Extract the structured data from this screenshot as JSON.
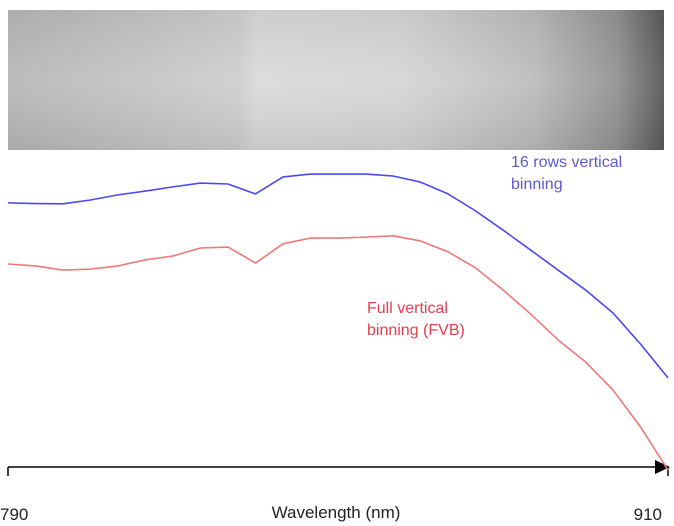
{
  "chart_data": {
    "type": "line",
    "xlabel": "Wavelength (nm)",
    "x": [
      790,
      795,
      800,
      805,
      810,
      815,
      820,
      825,
      830,
      835,
      840,
      845,
      850,
      855,
      860,
      865,
      870,
      875,
      880,
      885,
      890,
      895,
      900,
      905,
      910
    ],
    "xlim": [
      790,
      910
    ],
    "xticks": [
      790,
      910
    ],
    "ylim": [
      0,
      100
    ],
    "series": [
      {
        "name": "16 rows vertical binning",
        "color": "#4a4af0",
        "values": [
          86.6,
          86.4,
          86.3,
          87.5,
          89.1,
          90.3,
          91.6,
          92.8,
          92.5,
          89.4,
          94.7,
          95.6,
          95.6,
          95.6,
          95.0,
          93.1,
          89.4,
          84.1,
          78.1,
          71.9,
          65.6,
          59.4,
          52.2,
          42.5,
          31.9
        ]
      },
      {
        "name": "Full vertical binning (FVB)",
        "color": "#f07878",
        "values": [
          67.5,
          66.9,
          65.6,
          65.9,
          66.9,
          68.8,
          70.0,
          72.5,
          72.8,
          67.8,
          73.8,
          75.6,
          75.6,
          75.9,
          76.3,
          74.7,
          71.3,
          66.3,
          59.4,
          51.9,
          43.8,
          36.9,
          28.1,
          16.6,
          3.1
        ]
      }
    ]
  }
}
